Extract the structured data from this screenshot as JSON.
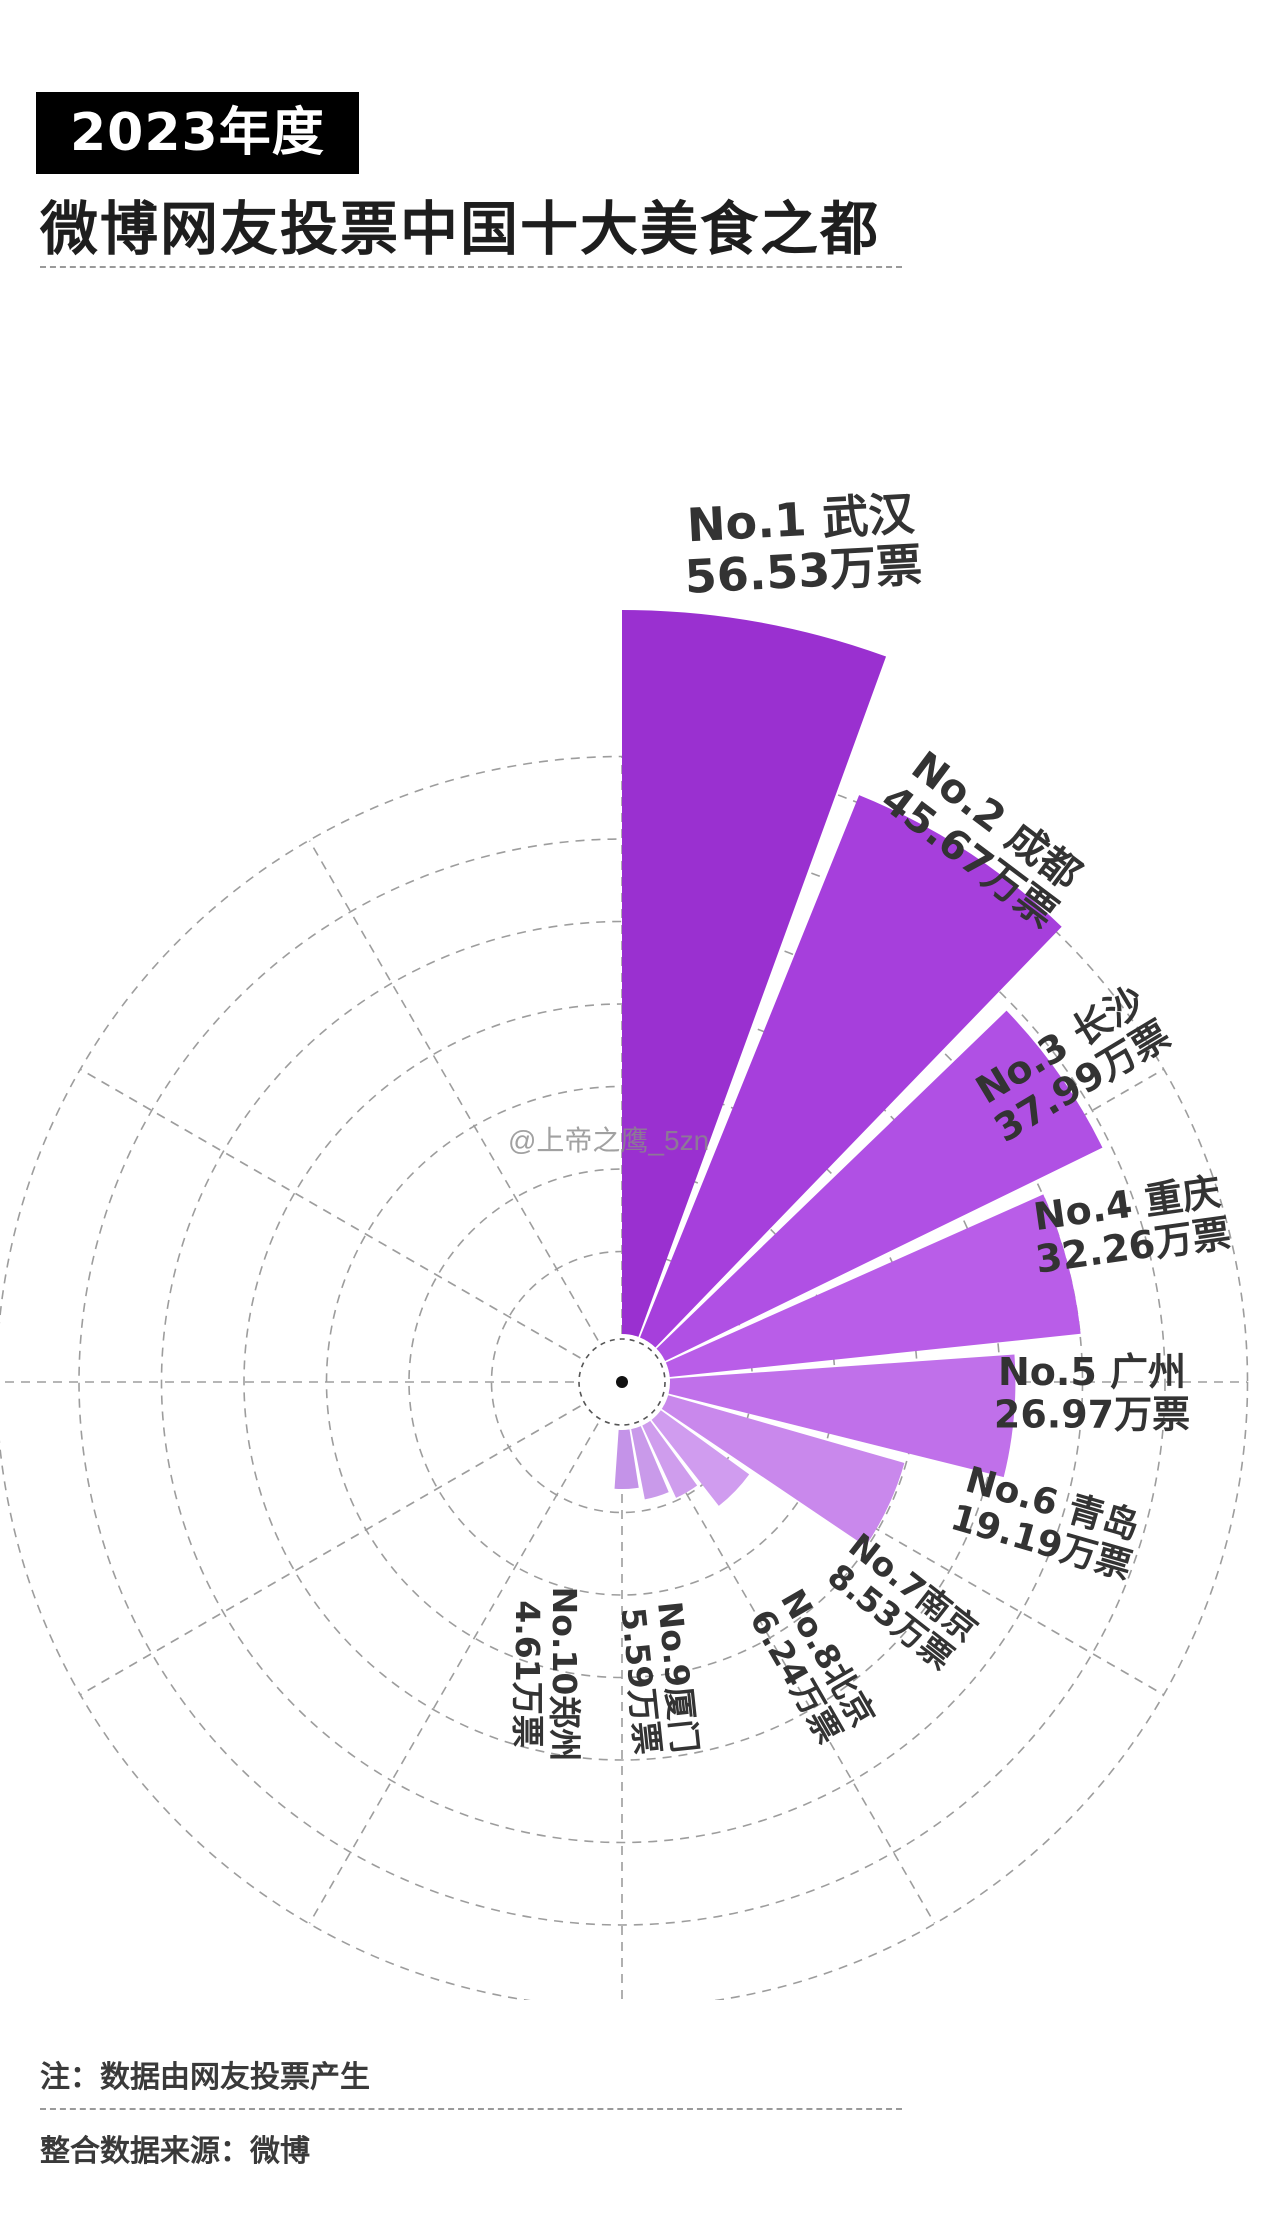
{
  "header": {
    "year_badge": "2023年度",
    "title": "微博网友投票中国十大美食之都"
  },
  "watermark": "@上帝之鹰_5zn",
  "footer": {
    "note": "注：数据由网友投票产生",
    "source": "整合数据来源：微博"
  },
  "chart_data": {
    "type": "bar",
    "subtype": "polar-rose",
    "title": "微博网友投票中国十大美食之都",
    "unit": "万票",
    "categories": [
      "武汉",
      "成都",
      "长沙",
      "重庆",
      "广州",
      "青岛",
      "南京",
      "北京",
      "厦门",
      "郑州"
    ],
    "ranks": [
      "No.1",
      "No.2",
      "No.3",
      "No.4",
      "No.5",
      "No.6",
      "No.7",
      "No.8",
      "No.9",
      "No.10"
    ],
    "values": [
      56.53,
      45.67,
      37.99,
      32.26,
      26.97,
      19.19,
      8.53,
      6.24,
      5.59,
      4.61
    ],
    "labels": [
      {
        "line1": "No.1 武汉",
        "line2": "56.53万票"
      },
      {
        "line1": "No.2 成都",
        "line2": "45.67万票"
      },
      {
        "line1": "No.3 长沙",
        "line2": "37.99万票"
      },
      {
        "line1": "No.4 重庆",
        "line2": "32.26万票"
      },
      {
        "line1": "No.5 广州",
        "line2": "26.97万票"
      },
      {
        "line1": "No.6 青岛",
        "line2": "19.19万票"
      },
      {
        "line1": "No.7南京",
        "line2": "8.53万票"
      },
      {
        "line1": "No.8北京",
        "line2": "6.24万票"
      },
      {
        "line1": "No.9厦门",
        "line2": "5.59万票"
      },
      {
        "line1": "No.10郑州",
        "line2": "4.61万票"
      }
    ],
    "colors": [
      "#9a30d0",
      "#a63fdc",
      "#b050e4",
      "#b95de8",
      "#c070ea",
      "#c988ec",
      "#d09cef",
      "#cf9ded",
      "#c99aea",
      "#c493e8"
    ],
    "grid": true,
    "legend": "none"
  }
}
